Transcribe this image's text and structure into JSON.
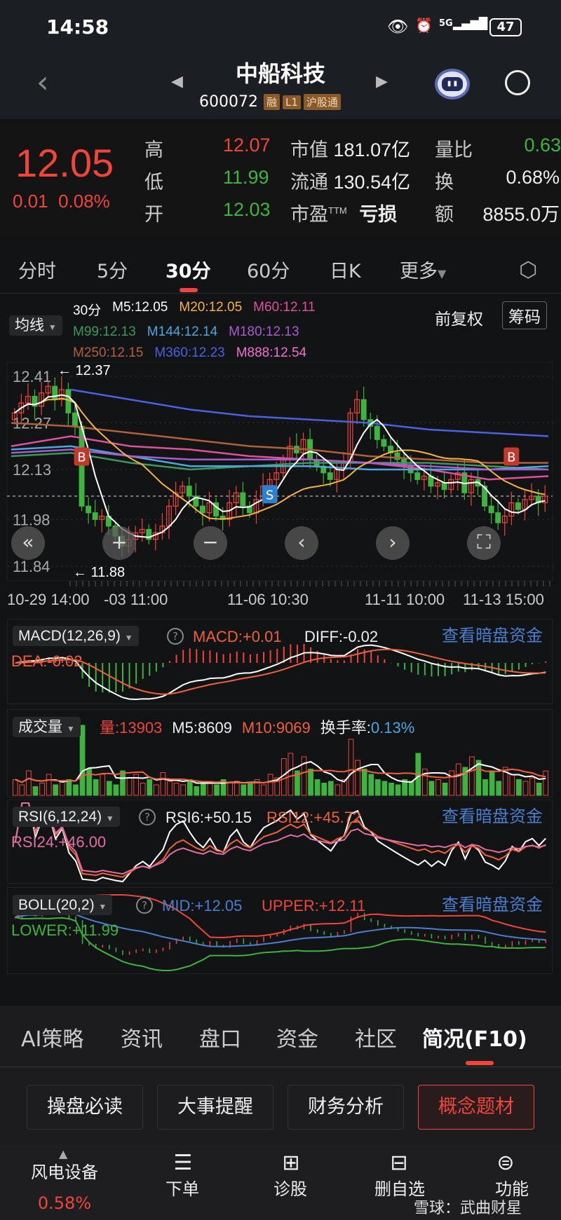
{
  "status_bar": {
    "time": "14:58",
    "network": "5G",
    "battery": "47"
  },
  "header": {
    "title": "中船科技",
    "code": "600072",
    "tags": [
      "融",
      "L1",
      "沪股通"
    ]
  },
  "quote": {
    "price": "12.05",
    "change": "0.01",
    "change_pct": "0.08%",
    "high_label": "高",
    "high": "12.07",
    "low_label": "低",
    "low": "11.99",
    "open_label": "开",
    "open": "12.03",
    "mktcap_label": "市值",
    "mktcap": "181.07亿",
    "float_label": "流通",
    "float": "130.54亿",
    "pe_label": "市盈",
    "pe_sup": "TTM",
    "pe": "亏损",
    "vol_ratio_label": "量比",
    "vol_ratio": "0.63",
    "turnover_label": "换",
    "turnover": "0.68%",
    "amount_label": "额",
    "amount": "8855.0万"
  },
  "period_tabs": [
    "分时",
    "5分",
    "30分",
    "60分",
    "日K",
    "更多"
  ],
  "active_period": "30分",
  "ma_legend": {
    "selector": "均线",
    "period": "30分",
    "fq": "前复权",
    "chips": "筹码",
    "items": [
      {
        "label": "M5:12.05",
        "color": "#ffffff"
      },
      {
        "label": "M20:12.05",
        "color": "#f5b342"
      },
      {
        "label": "M60:12.11",
        "color": "#e0509a"
      },
      {
        "label": "M99:12.13",
        "color": "#3a9a5a"
      },
      {
        "label": "M144:12.14",
        "color": "#4aa8e0"
      },
      {
        "label": "M180:12.13",
        "color": "#a95bd0"
      },
      {
        "label": "M250:12.15",
        "color": "#b0603a"
      },
      {
        "label": "M360:12.23",
        "color": "#4a62e0"
      },
      {
        "label": "M888:12.54",
        "color": "#f070d0"
      }
    ]
  },
  "chart": {
    "price_ticks": [
      "12.41",
      "12.27",
      "12.13",
      "11.98",
      "11.84"
    ],
    "price_tick_values": [
      12.41,
      12.27,
      12.13,
      11.98,
      11.84
    ],
    "high_marker": "12.37",
    "low_marker": "11.88",
    "date_labels": [
      "10-29 14:00",
      "-03 11:00",
      "11-06 10:30",
      "11-11 10:00",
      "11-13 15:00"
    ],
    "colors": {
      "up": "#f0453a",
      "down": "#3fb33f"
    },
    "closes": [
      12.3,
      12.33,
      12.35,
      12.32,
      12.36,
      12.38,
      12.34,
      12.37,
      12.3,
      12.26,
      12.02,
      12.0,
      11.98,
      11.99,
      11.96,
      11.93,
      11.9,
      11.92,
      11.94,
      11.95,
      11.92,
      11.94,
      11.96,
      12.02,
      12.06,
      12.08,
      12.05,
      12.02,
      12.0,
      12.03,
      11.99,
      11.98,
      12.03,
      12.06,
      12.02,
      12.0,
      12.04,
      12.08,
      12.1,
      12.12,
      12.16,
      12.2,
      12.18,
      12.22,
      12.16,
      12.14,
      12.12,
      12.1,
      12.13,
      12.15,
      12.3,
      12.34,
      12.28,
      12.26,
      12.22,
      12.2,
      12.18,
      12.16,
      12.14,
      12.12,
      12.1,
      12.11,
      12.08,
      12.09,
      12.07,
      12.1,
      12.12,
      12.06,
      12.1,
      12.08,
      12.02,
      12.0,
      11.97,
      11.99,
      12.03,
      12.01,
      12.04,
      12.05,
      12.03,
      12.05
    ],
    "ma_lines": [
      {
        "name": "M60",
        "color": "#e0509a",
        "values": [
          12.2,
          12.23,
          12.2,
          12.19,
          12.17,
          12.16,
          12.15,
          12.13,
          12.1,
          12.11
        ]
      },
      {
        "name": "M99",
        "color": "#3a9a5a",
        "values": [
          12.17,
          12.18,
          12.15,
          12.13,
          12.14,
          12.15,
          12.15,
          12.15,
          12.14,
          12.13
        ]
      },
      {
        "name": "M144",
        "color": "#4aa8e0",
        "values": [
          12.19,
          12.2,
          12.17,
          12.14,
          12.14,
          12.14,
          12.13,
          12.13,
          12.13,
          12.14
        ]
      },
      {
        "name": "M180",
        "color": "#a95bd0",
        "values": [
          12.18,
          12.19,
          12.17,
          12.16,
          12.16,
          12.16,
          12.15,
          12.14,
          12.13,
          12.13
        ]
      },
      {
        "name": "M250",
        "color": "#b0603a",
        "values": [
          12.27,
          12.26,
          12.24,
          12.22,
          12.2,
          12.19,
          12.17,
          12.16,
          12.15,
          12.15
        ]
      },
      {
        "name": "M888",
        "color": "#f070d0",
        "values": [
          null,
          null,
          null,
          null,
          null,
          null,
          null,
          null,
          null,
          null
        ]
      },
      {
        "name": "M360",
        "color": "#4a62e0",
        "values": [
          null,
          12.37,
          12.34,
          12.31,
          12.29,
          12.28,
          12.27,
          12.25,
          12.24,
          12.23
        ]
      }
    ],
    "markers": [
      {
        "type": "B",
        "bar": 10,
        "color": "#c0392b"
      },
      {
        "type": "S",
        "bar": 38,
        "color": "#2f7fd0"
      },
      {
        "type": "B",
        "bar": 74,
        "color": "#c0392b"
      }
    ]
  },
  "macd": {
    "label": "MACD(12,26,9)",
    "macd": "MACD:+0.01",
    "diff": "DIFF:-0.02",
    "dea": "DEA:-0.02",
    "link": "查看暗盘资金"
  },
  "volume": {
    "label": "成交量",
    "vol": "量:13903",
    "m5": "M5:8609",
    "m10": "M10:9069",
    "turnover_label": "换手率:",
    "turnover": "0.13%",
    "values": [
      9000,
      6000,
      14000,
      5000,
      7000,
      12000,
      6000,
      8000,
      9000,
      6000,
      40000,
      15000,
      9000,
      12000,
      8000,
      6000,
      14000,
      10000,
      12000,
      7000,
      9000,
      6000,
      13000,
      8000,
      7000,
      6000,
      9000,
      5000,
      8000,
      7000,
      6000,
      9000,
      7000,
      8000,
      6000,
      7000,
      9000,
      6000,
      12000,
      10000,
      21000,
      24000,
      14000,
      22000,
      15000,
      9000,
      7000,
      8000,
      6000,
      9000,
      32000,
      20000,
      15000,
      12000,
      9000,
      8000,
      7000,
      6000,
      9000,
      8000,
      24000,
      15000,
      8000,
      9000,
      7000,
      14000,
      18000,
      16000,
      22000,
      20000,
      9000,
      14000,
      8000,
      16000,
      12000,
      9000,
      8000,
      10000,
      7000,
      13903
    ]
  },
  "rsi": {
    "label": "RSI(6,12,24)",
    "rsi6": "RSI6:+50.15",
    "rsi12": "RSI12:+45.72",
    "rsi24": "RSI24:+46.00",
    "link": "查看暗盘资金"
  },
  "boll": {
    "label": "BOLL(20,2)",
    "mid": "MID:+12.05",
    "upper": "UPPER:+12.11",
    "lower": "LOWER:+11.99",
    "link": "查看暗盘资金"
  },
  "bottom_tabs": [
    "AI策略",
    "资讯",
    "盘口",
    "资金",
    "社区",
    "简况(F10)"
  ],
  "active_bottom_tab": "简况(F10)",
  "f10_buttons": [
    "操盘必读",
    "大事提醒",
    "财务分析",
    "概念题材"
  ],
  "active_f10_button": "概念题材",
  "bottom_nav": {
    "sector": "风电设备",
    "sector_pct": "0.58%",
    "items": [
      "下单",
      "诊股",
      "删自选",
      "功能"
    ],
    "watermark": "雪球：武曲财星"
  }
}
